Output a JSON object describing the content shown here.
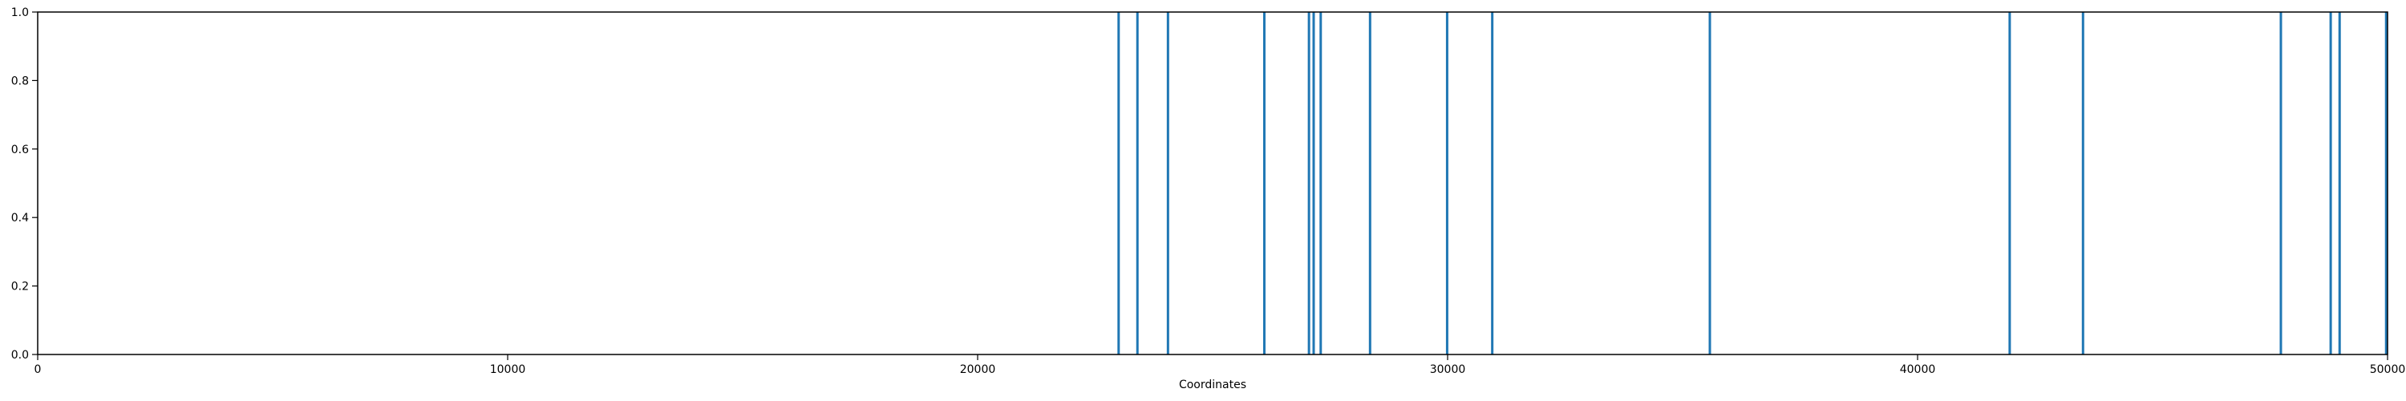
{
  "chart_data": {
    "type": "bar",
    "title": "",
    "xlabel": "Coordinates",
    "ylabel": "",
    "xlim": [
      0,
      50000
    ],
    "ylim": [
      0,
      1.0
    ],
    "grid": false,
    "x_ticks": [
      0,
      10000,
      20000,
      30000,
      40000,
      50000
    ],
    "y_ticks": [
      0.0,
      0.2,
      0.4,
      0.6,
      0.8,
      1.0
    ],
    "x_tick_labels": [
      "0",
      "10000",
      "20000",
      "30000",
      "40000",
      "50000"
    ],
    "y_tick_labels": [
      "0.0",
      "0.2",
      "0.4",
      "0.6",
      "0.8",
      "1.0"
    ],
    "series": [
      {
        "color": "#1f77b4",
        "x": [
          23000,
          23400,
          24050,
          26100,
          27050,
          27150,
          27300,
          28350,
          29990,
          30950,
          35580,
          41960,
          43520,
          47730,
          48790,
          48980,
          49970
        ],
        "values": [
          1,
          1,
          1,
          1,
          1,
          1,
          1,
          1,
          1,
          1,
          1,
          1,
          1,
          1,
          1,
          1,
          1
        ]
      }
    ]
  }
}
